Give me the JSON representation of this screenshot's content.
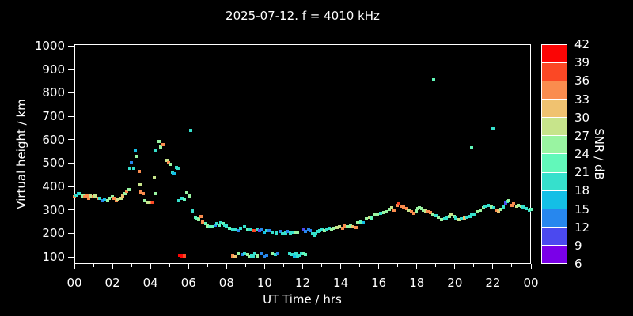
{
  "colors": {
    "background": "#000000",
    "text": "#ffffff",
    "frame": "#ffffff"
  },
  "chart_data": {
    "type": "scatter",
    "title": "2025-07-12. f = 4010 kHz",
    "xlabel": "UT Time / hrs",
    "ylabel": "Virtual height / km",
    "x_range_hours": [
      0,
      24
    ],
    "x_major_tick_hours": [
      0,
      2,
      4,
      6,
      8,
      10,
      12,
      14,
      16,
      18,
      20,
      22,
      24
    ],
    "x_tick_labels": [
      "00",
      "02",
      "04",
      "06",
      "08",
      "10",
      "12",
      "14",
      "16",
      "18",
      "20",
      "22",
      "00"
    ],
    "x_minor_tick_hours": [
      1,
      3,
      5,
      7,
      9,
      11,
      13,
      15,
      17,
      19,
      21,
      23
    ],
    "ylim": [
      100,
      1000
    ],
    "y_tick_values": [
      100,
      200,
      300,
      400,
      500,
      600,
      700,
      800,
      900,
      1000
    ],
    "y_tick_labels": [
      "100",
      "200",
      "300",
      "400",
      "500",
      "600",
      "700",
      "800",
      "900",
      "1000"
    ],
    "grid": false,
    "colorbar": {
      "label": "SNR / dB",
      "min": 6,
      "max": 42,
      "step": 3,
      "tick_labels": [
        "6",
        "9",
        "12",
        "15",
        "18",
        "21",
        "24",
        "27",
        "30",
        "33",
        "36",
        "39",
        "42"
      ],
      "segment_colors_bottom_to_top": [
        "#7a00e8",
        "#4b49ef",
        "#2787ee",
        "#14bfe6",
        "#36e0cc",
        "#62f8ba",
        "#99f4a1",
        "#c7e48b",
        "#f0c270",
        "#fa8c4e",
        "#fb4825",
        "#fb0505"
      ]
    },
    "points_format": [
      "ut_hour",
      "virtual_height_km",
      "snr_db"
    ],
    "points": [
      [
        0.0,
        355,
        34
      ],
      [
        0.1,
        362,
        19
      ],
      [
        0.2,
        371,
        16
      ],
      [
        0.3,
        368,
        19
      ],
      [
        0.45,
        361,
        25
      ],
      [
        0.55,
        355,
        34
      ],
      [
        0.65,
        358,
        34
      ],
      [
        0.75,
        351,
        34
      ],
      [
        0.85,
        358,
        28
      ],
      [
        1.0,
        355,
        34
      ],
      [
        1.1,
        358,
        28
      ],
      [
        1.25,
        351,
        34
      ],
      [
        1.35,
        348,
        19
      ],
      [
        1.5,
        341,
        13
      ],
      [
        1.6,
        345,
        16
      ],
      [
        1.75,
        338,
        25
      ],
      [
        1.85,
        348,
        25
      ],
      [
        2.0,
        355,
        25
      ],
      [
        2.1,
        348,
        34
      ],
      [
        2.2,
        341,
        34
      ],
      [
        2.3,
        345,
        28
      ],
      [
        2.45,
        348,
        28
      ],
      [
        2.55,
        358,
        31
      ],
      [
        2.65,
        371,
        25
      ],
      [
        2.75,
        381,
        34
      ],
      [
        2.85,
        388,
        25
      ],
      [
        2.9,
        477,
        19
      ],
      [
        3.0,
        500,
        13
      ],
      [
        3.1,
        477,
        19
      ],
      [
        3.2,
        553,
        16
      ],
      [
        3.3,
        527,
        25
      ],
      [
        3.4,
        464,
        34
      ],
      [
        3.45,
        407,
        28
      ],
      [
        3.5,
        377,
        34
      ],
      [
        3.6,
        368,
        34
      ],
      [
        3.7,
        341,
        25
      ],
      [
        3.85,
        334,
        28
      ],
      [
        3.95,
        334,
        28
      ],
      [
        4.05,
        331,
        34
      ],
      [
        4.12,
        331,
        37
      ],
      [
        4.2,
        437,
        28
      ],
      [
        4.3,
        371,
        25
      ],
      [
        4.3,
        553,
        19
      ],
      [
        4.45,
        593,
        25
      ],
      [
        4.55,
        567,
        25
      ],
      [
        4.65,
        580,
        34
      ],
      [
        4.85,
        510,
        28
      ],
      [
        4.95,
        500,
        34
      ],
      [
        5.05,
        494,
        25
      ],
      [
        5.15,
        460,
        19
      ],
      [
        5.25,
        454,
        16
      ],
      [
        5.35,
        481,
        19
      ],
      [
        5.45,
        477,
        19
      ],
      [
        5.5,
        341,
        19
      ],
      [
        5.65,
        351,
        19
      ],
      [
        5.8,
        345,
        22
      ],
      [
        5.9,
        374,
        25
      ],
      [
        6.05,
        361,
        25
      ],
      [
        6.1,
        639,
        19
      ],
      [
        6.2,
        295,
        19
      ],
      [
        6.35,
        269,
        22
      ],
      [
        6.45,
        262,
        22
      ],
      [
        6.55,
        259,
        25
      ],
      [
        6.65,
        272,
        34
      ],
      [
        6.75,
        249,
        34
      ],
      [
        6.9,
        242,
        22
      ],
      [
        7.0,
        232,
        25
      ],
      [
        7.1,
        229,
        22
      ],
      [
        7.25,
        229,
        22
      ],
      [
        7.4,
        236,
        13
      ],
      [
        7.5,
        242,
        19
      ],
      [
        7.6,
        236,
        22
      ],
      [
        7.7,
        245,
        19
      ],
      [
        7.8,
        242,
        22
      ],
      [
        7.9,
        236,
        19
      ],
      [
        8.0,
        232,
        19
      ],
      [
        8.15,
        222,
        22
      ],
      [
        8.3,
        219,
        19
      ],
      [
        8.45,
        216,
        19
      ],
      [
        8.6,
        212,
        13
      ],
      [
        8.75,
        222,
        19
      ],
      [
        8.95,
        229,
        19
      ],
      [
        9.1,
        219,
        22
      ],
      [
        9.25,
        216,
        19
      ],
      [
        9.45,
        212,
        37
      ],
      [
        9.6,
        216,
        19
      ],
      [
        9.75,
        212,
        10
      ],
      [
        9.85,
        216,
        13
      ],
      [
        10.0,
        206,
        16
      ],
      [
        10.1,
        212,
        19
      ],
      [
        10.25,
        212,
        13
      ],
      [
        10.4,
        206,
        19
      ],
      [
        10.6,
        202,
        19
      ],
      [
        10.8,
        209,
        13
      ],
      [
        10.95,
        199,
        19
      ],
      [
        11.1,
        202,
        19
      ],
      [
        11.2,
        209,
        13
      ],
      [
        11.35,
        202,
        19
      ],
      [
        11.5,
        204,
        19
      ],
      [
        11.65,
        206,
        25
      ],
      [
        11.75,
        206,
        25
      ],
      [
        12.05,
        219,
        10
      ],
      [
        12.15,
        209,
        13
      ],
      [
        12.3,
        219,
        13
      ],
      [
        12.4,
        212,
        13
      ],
      [
        12.5,
        199,
        19
      ],
      [
        12.6,
        192,
        19
      ],
      [
        12.7,
        199,
        19
      ],
      [
        12.8,
        209,
        19
      ],
      [
        12.9,
        212,
        19
      ],
      [
        13.0,
        219,
        19
      ],
      [
        13.15,
        212,
        25
      ],
      [
        13.25,
        219,
        19
      ],
      [
        13.4,
        222,
        19
      ],
      [
        13.5,
        215,
        25
      ],
      [
        13.65,
        222,
        25
      ],
      [
        13.8,
        225,
        28
      ],
      [
        13.95,
        229,
        28
      ],
      [
        14.1,
        222,
        34
      ],
      [
        14.2,
        232,
        34
      ],
      [
        14.35,
        229,
        25
      ],
      [
        14.5,
        232,
        25
      ],
      [
        14.65,
        227,
        31
      ],
      [
        14.8,
        225,
        34
      ],
      [
        14.9,
        245,
        25
      ],
      [
        15.05,
        249,
        22
      ],
      [
        15.2,
        245,
        16
      ],
      [
        15.35,
        262,
        25
      ],
      [
        15.5,
        269,
        28
      ],
      [
        15.6,
        265,
        22
      ],
      [
        15.75,
        278,
        25
      ],
      [
        15.95,
        282,
        25
      ],
      [
        16.1,
        285,
        19
      ],
      [
        16.25,
        288,
        25
      ],
      [
        16.4,
        292,
        25
      ],
      [
        16.55,
        302,
        25
      ],
      [
        16.7,
        308,
        28
      ],
      [
        16.8,
        298,
        34
      ],
      [
        16.95,
        318,
        34
      ],
      [
        17.05,
        325,
        37
      ],
      [
        17.2,
        315,
        34
      ],
      [
        17.3,
        312,
        34
      ],
      [
        17.45,
        305,
        34
      ],
      [
        17.6,
        298,
        28
      ],
      [
        17.7,
        292,
        34
      ],
      [
        17.85,
        285,
        34
      ],
      [
        17.95,
        295,
        25
      ],
      [
        18.05,
        305,
        25
      ],
      [
        18.15,
        308,
        25
      ],
      [
        18.25,
        305,
        25
      ],
      [
        18.35,
        298,
        25
      ],
      [
        18.45,
        295,
        28
      ],
      [
        18.6,
        292,
        34
      ],
      [
        18.7,
        288,
        34
      ],
      [
        18.85,
        278,
        25
      ],
      [
        19.0,
        275,
        19
      ],
      [
        19.15,
        269,
        25
      ],
      [
        19.3,
        259,
        25
      ],
      [
        19.45,
        262,
        19
      ],
      [
        19.55,
        265,
        19
      ],
      [
        19.7,
        272,
        25
      ],
      [
        19.8,
        278,
        28
      ],
      [
        19.95,
        272,
        25
      ],
      [
        20.05,
        265,
        19
      ],
      [
        20.2,
        259,
        28
      ],
      [
        20.35,
        262,
        19
      ],
      [
        20.5,
        265,
        31
      ],
      [
        20.65,
        269,
        19
      ],
      [
        20.8,
        272,
        19
      ],
      [
        20.9,
        278,
        19
      ],
      [
        21.05,
        282,
        19
      ],
      [
        21.2,
        292,
        25
      ],
      [
        21.35,
        298,
        25
      ],
      [
        21.5,
        308,
        25
      ],
      [
        21.6,
        315,
        19
      ],
      [
        21.75,
        318,
        19
      ],
      [
        21.9,
        312,
        25
      ],
      [
        22.05,
        308,
        19
      ],
      [
        22.2,
        298,
        34
      ],
      [
        22.3,
        295,
        31
      ],
      [
        22.4,
        302,
        25
      ],
      [
        22.55,
        312,
        19
      ],
      [
        22.65,
        328,
        10
      ],
      [
        22.75,
        335,
        19
      ],
      [
        22.85,
        341,
        25
      ],
      [
        23.0,
        318,
        34
      ],
      [
        23.1,
        325,
        34
      ],
      [
        23.25,
        315,
        28
      ],
      [
        23.35,
        318,
        25
      ],
      [
        23.5,
        315,
        25
      ],
      [
        23.6,
        312,
        19
      ],
      [
        23.75,
        305,
        19
      ],
      [
        23.9,
        298,
        19
      ],
      [
        24.0,
        302,
        22
      ],
      [
        5.55,
        106,
        40
      ],
      [
        5.65,
        104,
        40
      ],
      [
        5.8,
        104,
        37
      ],
      [
        8.3,
        103,
        34
      ],
      [
        8.45,
        100,
        31
      ],
      [
        8.6,
        113,
        25
      ],
      [
        8.8,
        110,
        13
      ],
      [
        8.95,
        113,
        19
      ],
      [
        9.1,
        110,
        25
      ],
      [
        9.2,
        100,
        25
      ],
      [
        9.3,
        103,
        19
      ],
      [
        9.4,
        100,
        19
      ],
      [
        9.5,
        113,
        19
      ],
      [
        9.6,
        103,
        25
      ],
      [
        9.85,
        113,
        13
      ],
      [
        10.0,
        100,
        13
      ],
      [
        10.1,
        106,
        13
      ],
      [
        10.4,
        113,
        25
      ],
      [
        10.55,
        110,
        19
      ],
      [
        10.7,
        113,
        13
      ],
      [
        11.3,
        113,
        19
      ],
      [
        11.45,
        110,
        19
      ],
      [
        11.55,
        103,
        16
      ],
      [
        11.65,
        113,
        19
      ],
      [
        11.75,
        100,
        19
      ],
      [
        11.85,
        106,
        19
      ],
      [
        11.95,
        113,
        19
      ],
      [
        12.05,
        113,
        22
      ],
      [
        12.15,
        110,
        22
      ],
      [
        18.9,
        855,
        22
      ],
      [
        20.9,
        565,
        22
      ],
      [
        22.0,
        645,
        19
      ]
    ]
  }
}
